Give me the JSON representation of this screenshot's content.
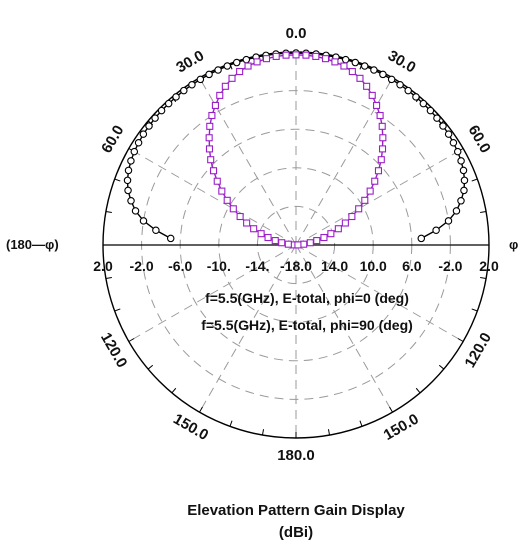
{
  "chart_data": {
    "type": "polar",
    "title": "Elevation Pattern Gain Display",
    "subtitle": "(dBi)",
    "left_label": "(180—φ)",
    "right_label": "φ",
    "angle_labels": [
      {
        "deg": 0,
        "text": "0.0"
      },
      {
        "deg": 30,
        "text": "30.0"
      },
      {
        "deg": 60,
        "text": "60.0"
      },
      {
        "deg": 120,
        "text": "120.0"
      },
      {
        "deg": 150,
        "text": "150.0"
      },
      {
        "deg": 180,
        "text": "180.0"
      },
      {
        "deg": -30,
        "text": "30.0"
      },
      {
        "deg": -60,
        "text": "60.0"
      },
      {
        "deg": -120,
        "text": "120.0"
      },
      {
        "deg": -150,
        "text": "150.0"
      }
    ],
    "radial_ticks": [
      2.0,
      -2.0,
      -6.0,
      -10.0,
      -14.0,
      -18.0
    ],
    "radial_tick_labels_left": [
      "2.0",
      "-2.0",
      "-6.0",
      "-10.",
      "-14.",
      "-18.0"
    ],
    "radial_tick_labels_right": [
      "14.0",
      "10.0",
      "6.0",
      "-2.0",
      "2.0"
    ],
    "rlim": [
      -18,
      2
    ],
    "grid": true,
    "legend": [
      {
        "text": "f=5.5(GHz), E-total, phi=0 (deg)",
        "color": "#000000",
        "marker": "circle"
      },
      {
        "text": "f=5.5(GHz), E-total, phi=90 (deg)",
        "color": "#9b1fc7",
        "marker": "square"
      }
    ],
    "series": [
      {
        "name": "f=5.5(GHz), E-total, phi=0 (deg)",
        "color": "#000000",
        "marker": "circle",
        "theta": [
          -87,
          -84,
          -81,
          -78,
          -75,
          -72,
          -69,
          -66,
          -63,
          -60,
          -57,
          -54,
          -51,
          -48,
          -45,
          -42,
          -39,
          -36,
          -33,
          -30,
          -27,
          -24,
          -21,
          -18,
          -15,
          -12,
          -9,
          -6,
          -3,
          0,
          3,
          6,
          9,
          12,
          15,
          18,
          21,
          24,
          27,
          30,
          33,
          36,
          39,
          42,
          45,
          48,
          51,
          54,
          57,
          60,
          63,
          66,
          69,
          72,
          75,
          78,
          81,
          84,
          87
        ],
        "r": [
          -5.0,
          -3.4,
          -2.0,
          -1.0,
          -0.3,
          0.3,
          0.7,
          1.0,
          1.2,
          1.35,
          1.45,
          1.55,
          1.6,
          1.65,
          1.7,
          1.72,
          1.75,
          1.78,
          1.8,
          1.82,
          1.84,
          1.85,
          1.87,
          1.88,
          1.89,
          1.9,
          1.9,
          1.9,
          1.9,
          1.9,
          1.9,
          1.9,
          1.9,
          1.9,
          1.89,
          1.88,
          1.87,
          1.85,
          1.84,
          1.82,
          1.8,
          1.78,
          1.75,
          1.72,
          1.7,
          1.65,
          1.6,
          1.55,
          1.45,
          1.35,
          1.2,
          1.0,
          0.7,
          0.3,
          -0.3,
          -1.0,
          -2.0,
          -3.4,
          -5.0
        ]
      },
      {
        "name": "f=5.5(GHz), E-total, phi=90 (deg)",
        "color": "#9b1fc7",
        "marker": "square",
        "theta": [
          -87,
          -84,
          -81,
          -78,
          -75,
          -72,
          -69,
          -66,
          -63,
          -60,
          -57,
          -54,
          -51,
          -48,
          -45,
          -42,
          -39,
          -36,
          -33,
          -30,
          -27,
          -24,
          -21,
          -18,
          -15,
          -12,
          -9,
          -6,
          -3,
          0,
          3,
          6,
          9,
          12,
          15,
          18,
          21,
          24,
          27,
          30,
          33,
          36,
          39,
          42,
          45,
          48,
          51,
          54,
          57,
          60,
          63,
          66,
          69,
          72,
          75,
          78,
          81,
          84,
          87
        ],
        "r": [
          -17.8,
          -17.2,
          -16.5,
          -15.8,
          -15.0,
          -14.2,
          -13.3,
          -12.4,
          -11.5,
          -10.5,
          -9.5,
          -8.5,
          -7.5,
          -6.5,
          -5.5,
          -4.6,
          -3.7,
          -2.8,
          -2.0,
          -1.3,
          -0.6,
          0.0,
          0.5,
          0.9,
          1.2,
          1.4,
          1.55,
          1.65,
          1.7,
          1.7,
          1.7,
          1.65,
          1.55,
          1.4,
          1.2,
          0.9,
          0.5,
          0.0,
          -0.6,
          -1.3,
          -2.0,
          -2.8,
          -3.7,
          -4.6,
          -5.5,
          -6.5,
          -7.5,
          -8.5,
          -9.5,
          -10.5,
          -11.5,
          -12.4,
          -13.3,
          -14.2,
          -15.0,
          -15.8,
          -16.5,
          -17.2,
          -17.8
        ]
      }
    ]
  }
}
